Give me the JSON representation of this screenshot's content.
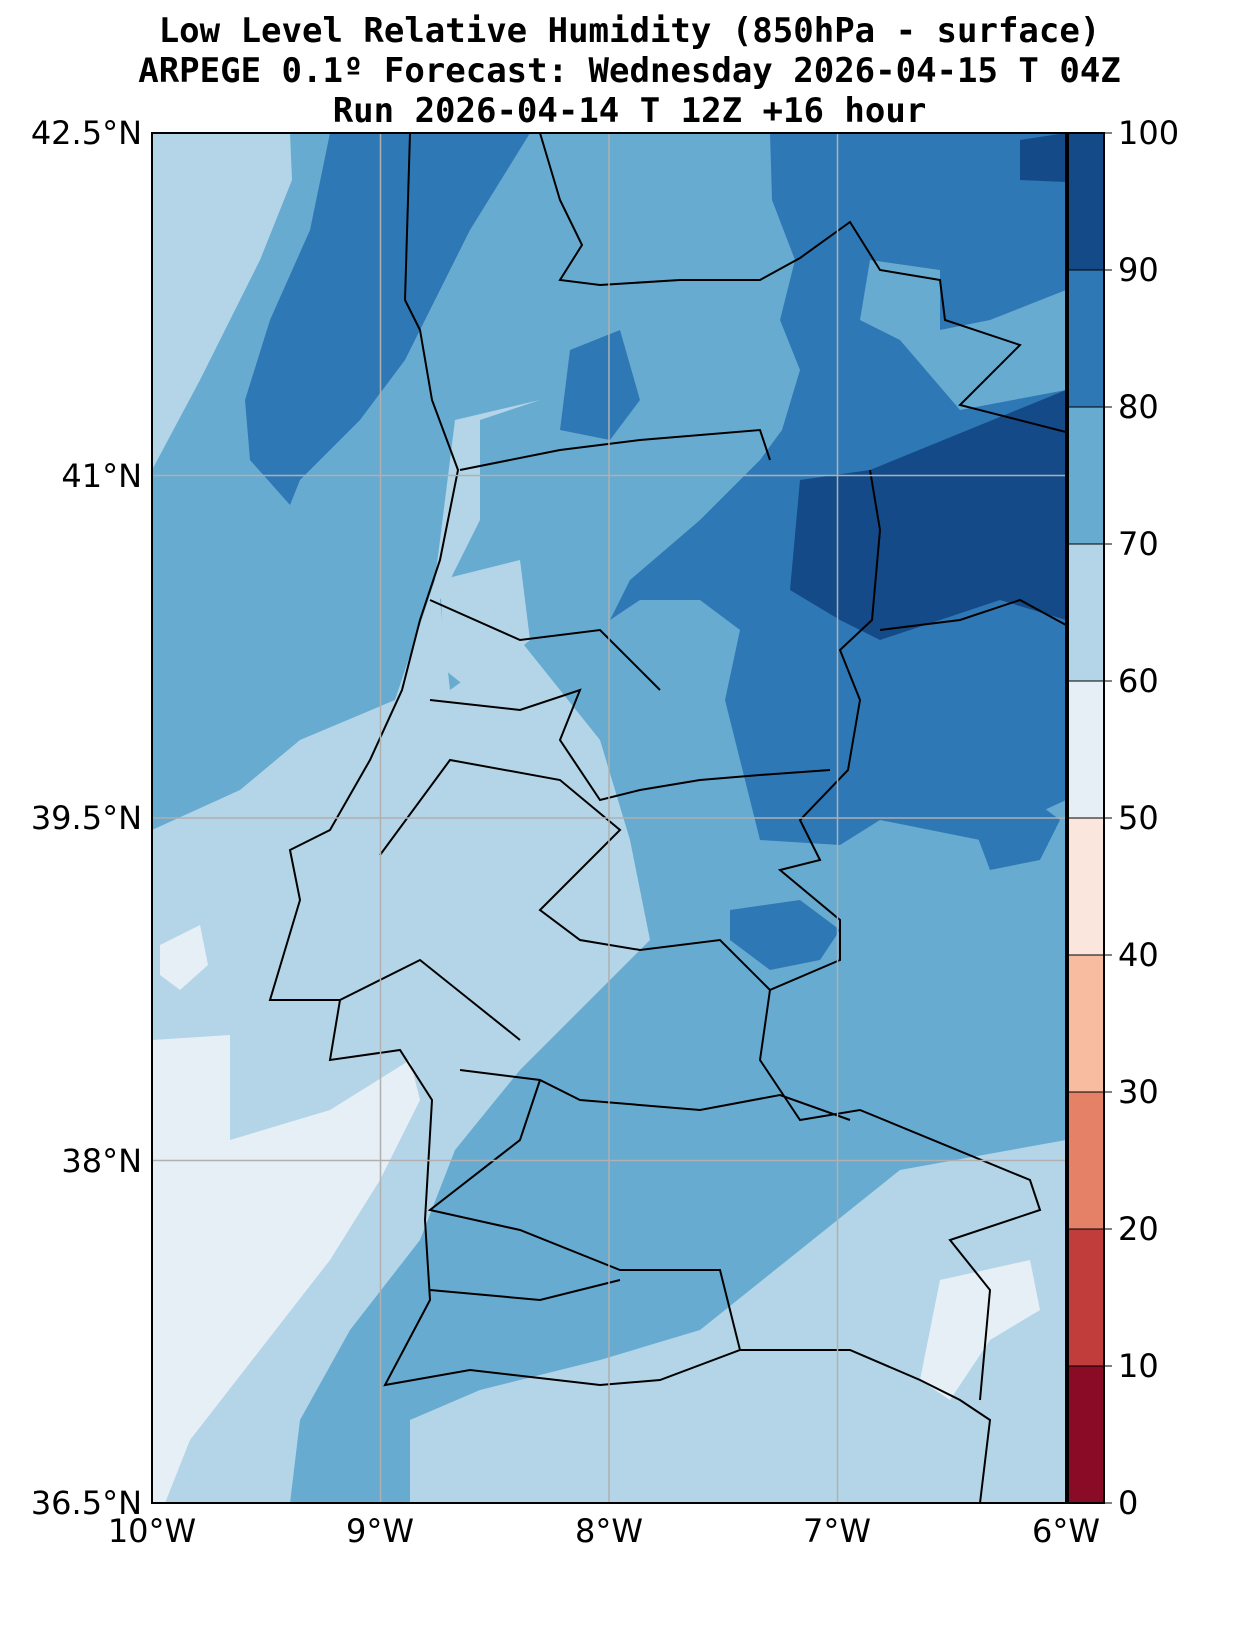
{
  "title": {
    "line1": "Low Level Relative Humidity (850hPa - surface)",
    "line2": "ARPEGE 0.1º Forecast: Wednesday 2026-04-15 T 04Z",
    "line3": "Run 2026-04-14 T 12Z +16 hour"
  },
  "chart_data": {
    "type": "heatmap",
    "variable": "Low Level Relative Humidity (%)",
    "lon_range": [
      -10,
      -6
    ],
    "lat_range": [
      36.5,
      42.5
    ],
    "x_ticks": [
      "10°W",
      "9°W",
      "8°W",
      "7°W",
      "6°W"
    ],
    "y_ticks": [
      "42.5°N",
      "41°N",
      "39.5°N",
      "38°N",
      "36.5°N"
    ],
    "grid": true,
    "colorbar": {
      "levels": [
        0,
        10,
        20,
        30,
        40,
        50,
        60,
        70,
        80,
        90,
        100
      ],
      "tick_labels": [
        "0",
        "10",
        "20",
        "30",
        "40",
        "50",
        "60",
        "70",
        "80",
        "90",
        "100"
      ],
      "colors": [
        "#8a0b25",
        "#c13d3b",
        "#e48166",
        "#f8bca1",
        "#fae6dc",
        "#e6eff5",
        "#b3d5e7",
        "#68abd1",
        "#2f78b6",
        "#134a87"
      ]
    },
    "summary": "Humidity mostly 60-90%; driest (50-60%) over Atlantic SW of Lisbon; wettest (90-100%) in NE interior around 6.5-7°W, 40.5-41.5°N"
  }
}
